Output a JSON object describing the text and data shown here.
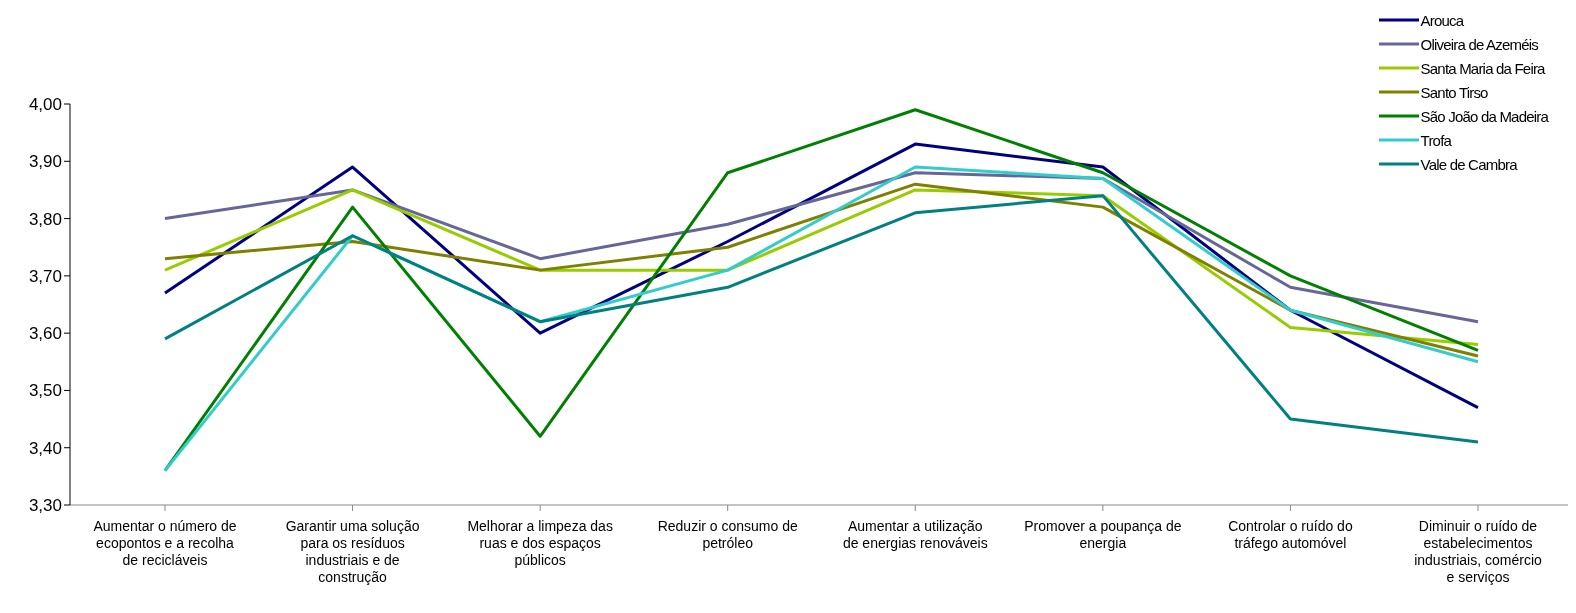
{
  "chart_data": {
    "type": "line",
    "categories": [
      "Aumentar o número de ecopontos e a recolha de recicláveis",
      "Garantir uma solução para os resíduos industriais e de construção",
      "Melhorar a limpeza das ruas e dos espaços públicos",
      "Reduzir o consumo de petróleo",
      "Aumentar a utilização de energias renováveis",
      "Promover a poupança de energia",
      "Controlar o ruído do tráfego automóvel",
      "Diminuir o ruído de estabelecimentos industriais, comércio e serviços"
    ],
    "series": [
      {
        "name": "Arouca",
        "color": "#000080",
        "values": [
          3.67,
          3.89,
          3.6,
          3.76,
          3.93,
          3.89,
          3.64,
          3.47
        ]
      },
      {
        "name": "Oliveira de Azeméis",
        "color": "#666699",
        "values": [
          3.8,
          3.85,
          3.73,
          3.79,
          3.88,
          3.87,
          3.68,
          3.62
        ]
      },
      {
        "name": "Santa Maria da Feira",
        "color": "#99cc00",
        "values": [
          3.71,
          3.85,
          3.71,
          3.71,
          3.85,
          3.84,
          3.61,
          3.58
        ]
      },
      {
        "name": "Santo Tirso",
        "color": "#808000",
        "values": [
          3.73,
          3.76,
          3.71,
          3.75,
          3.86,
          3.82,
          3.64,
          3.56
        ]
      },
      {
        "name": "São João da Madeira",
        "color": "#008000",
        "values": [
          3.36,
          3.82,
          3.42,
          3.88,
          3.99,
          3.88,
          3.7,
          3.57
        ]
      },
      {
        "name": "Trofa",
        "color": "#33cccc",
        "values": [
          3.36,
          3.77,
          3.62,
          3.71,
          3.89,
          3.87,
          3.64,
          3.55
        ]
      },
      {
        "name": "Vale de Cambra",
        "color": "#008080",
        "values": [
          3.59,
          3.77,
          3.62,
          3.68,
          3.81,
          3.84,
          3.45,
          3.41
        ]
      }
    ],
    "ylim": [
      3.3,
      4.0
    ],
    "yticks": [
      {
        "value": 3.3,
        "label": "3,30"
      },
      {
        "value": 3.4,
        "label": "3,40"
      },
      {
        "value": 3.5,
        "label": "3,50"
      },
      {
        "value": 3.6,
        "label": "3,60"
      },
      {
        "value": 3.7,
        "label": "3,70"
      },
      {
        "value": 3.8,
        "label": "3,80"
      },
      {
        "value": 3.9,
        "label": "3,90"
      },
      {
        "value": 4.0,
        "label": "4,00"
      }
    ],
    "grid": false,
    "legend": "top right",
    "marker": "none",
    "line_style": "solid"
  }
}
